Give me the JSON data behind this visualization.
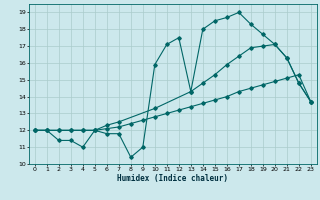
{
  "xlabel": "Humidex (Indice chaleur)",
  "bg_color": "#cce8ec",
  "grid_color": "#aacccc",
  "line_color": "#006666",
  "xlim": [
    -0.5,
    23.5
  ],
  "ylim": [
    10,
    19.5
  ],
  "xticks": [
    0,
    1,
    2,
    3,
    4,
    5,
    6,
    7,
    8,
    9,
    10,
    11,
    12,
    13,
    14,
    15,
    16,
    17,
    18,
    19,
    20,
    21,
    22,
    23
  ],
  "yticks": [
    10,
    11,
    12,
    13,
    14,
    15,
    16,
    17,
    18,
    19
  ],
  "line1_x": [
    0,
    1,
    2,
    3,
    4,
    5,
    6,
    7,
    8,
    9,
    10,
    11,
    12,
    13,
    14,
    15,
    16,
    17,
    18,
    19,
    20,
    21,
    22,
    23
  ],
  "line1_y": [
    12,
    12,
    11.4,
    11.4,
    11,
    12,
    11.8,
    11.8,
    10.4,
    11,
    15.9,
    17.1,
    17.5,
    14.3,
    18.0,
    18.5,
    18.7,
    19.0,
    18.3,
    17.7,
    17.1,
    16.3,
    14.8,
    13.7
  ],
  "line2_x": [
    0,
    1,
    2,
    3,
    4,
    5,
    6,
    7,
    10,
    13,
    14,
    15,
    16,
    17,
    18,
    19,
    20,
    21,
    22,
    23
  ],
  "line2_y": [
    12,
    12,
    12,
    12,
    12,
    12,
    12.3,
    12.5,
    13.3,
    14.3,
    14.8,
    15.3,
    15.9,
    16.4,
    16.9,
    17.0,
    17.1,
    16.3,
    14.8,
    13.7
  ],
  "line3_x": [
    0,
    1,
    2,
    3,
    4,
    5,
    6,
    7,
    8,
    9,
    10,
    11,
    12,
    13,
    14,
    15,
    16,
    17,
    18,
    19,
    20,
    21,
    22,
    23
  ],
  "line3_y": [
    12,
    12,
    12,
    12,
    12,
    12,
    12.1,
    12.2,
    12.4,
    12.6,
    12.8,
    13.0,
    13.2,
    13.4,
    13.6,
    13.8,
    14.0,
    14.3,
    14.5,
    14.7,
    14.9,
    15.1,
    15.3,
    13.7
  ]
}
